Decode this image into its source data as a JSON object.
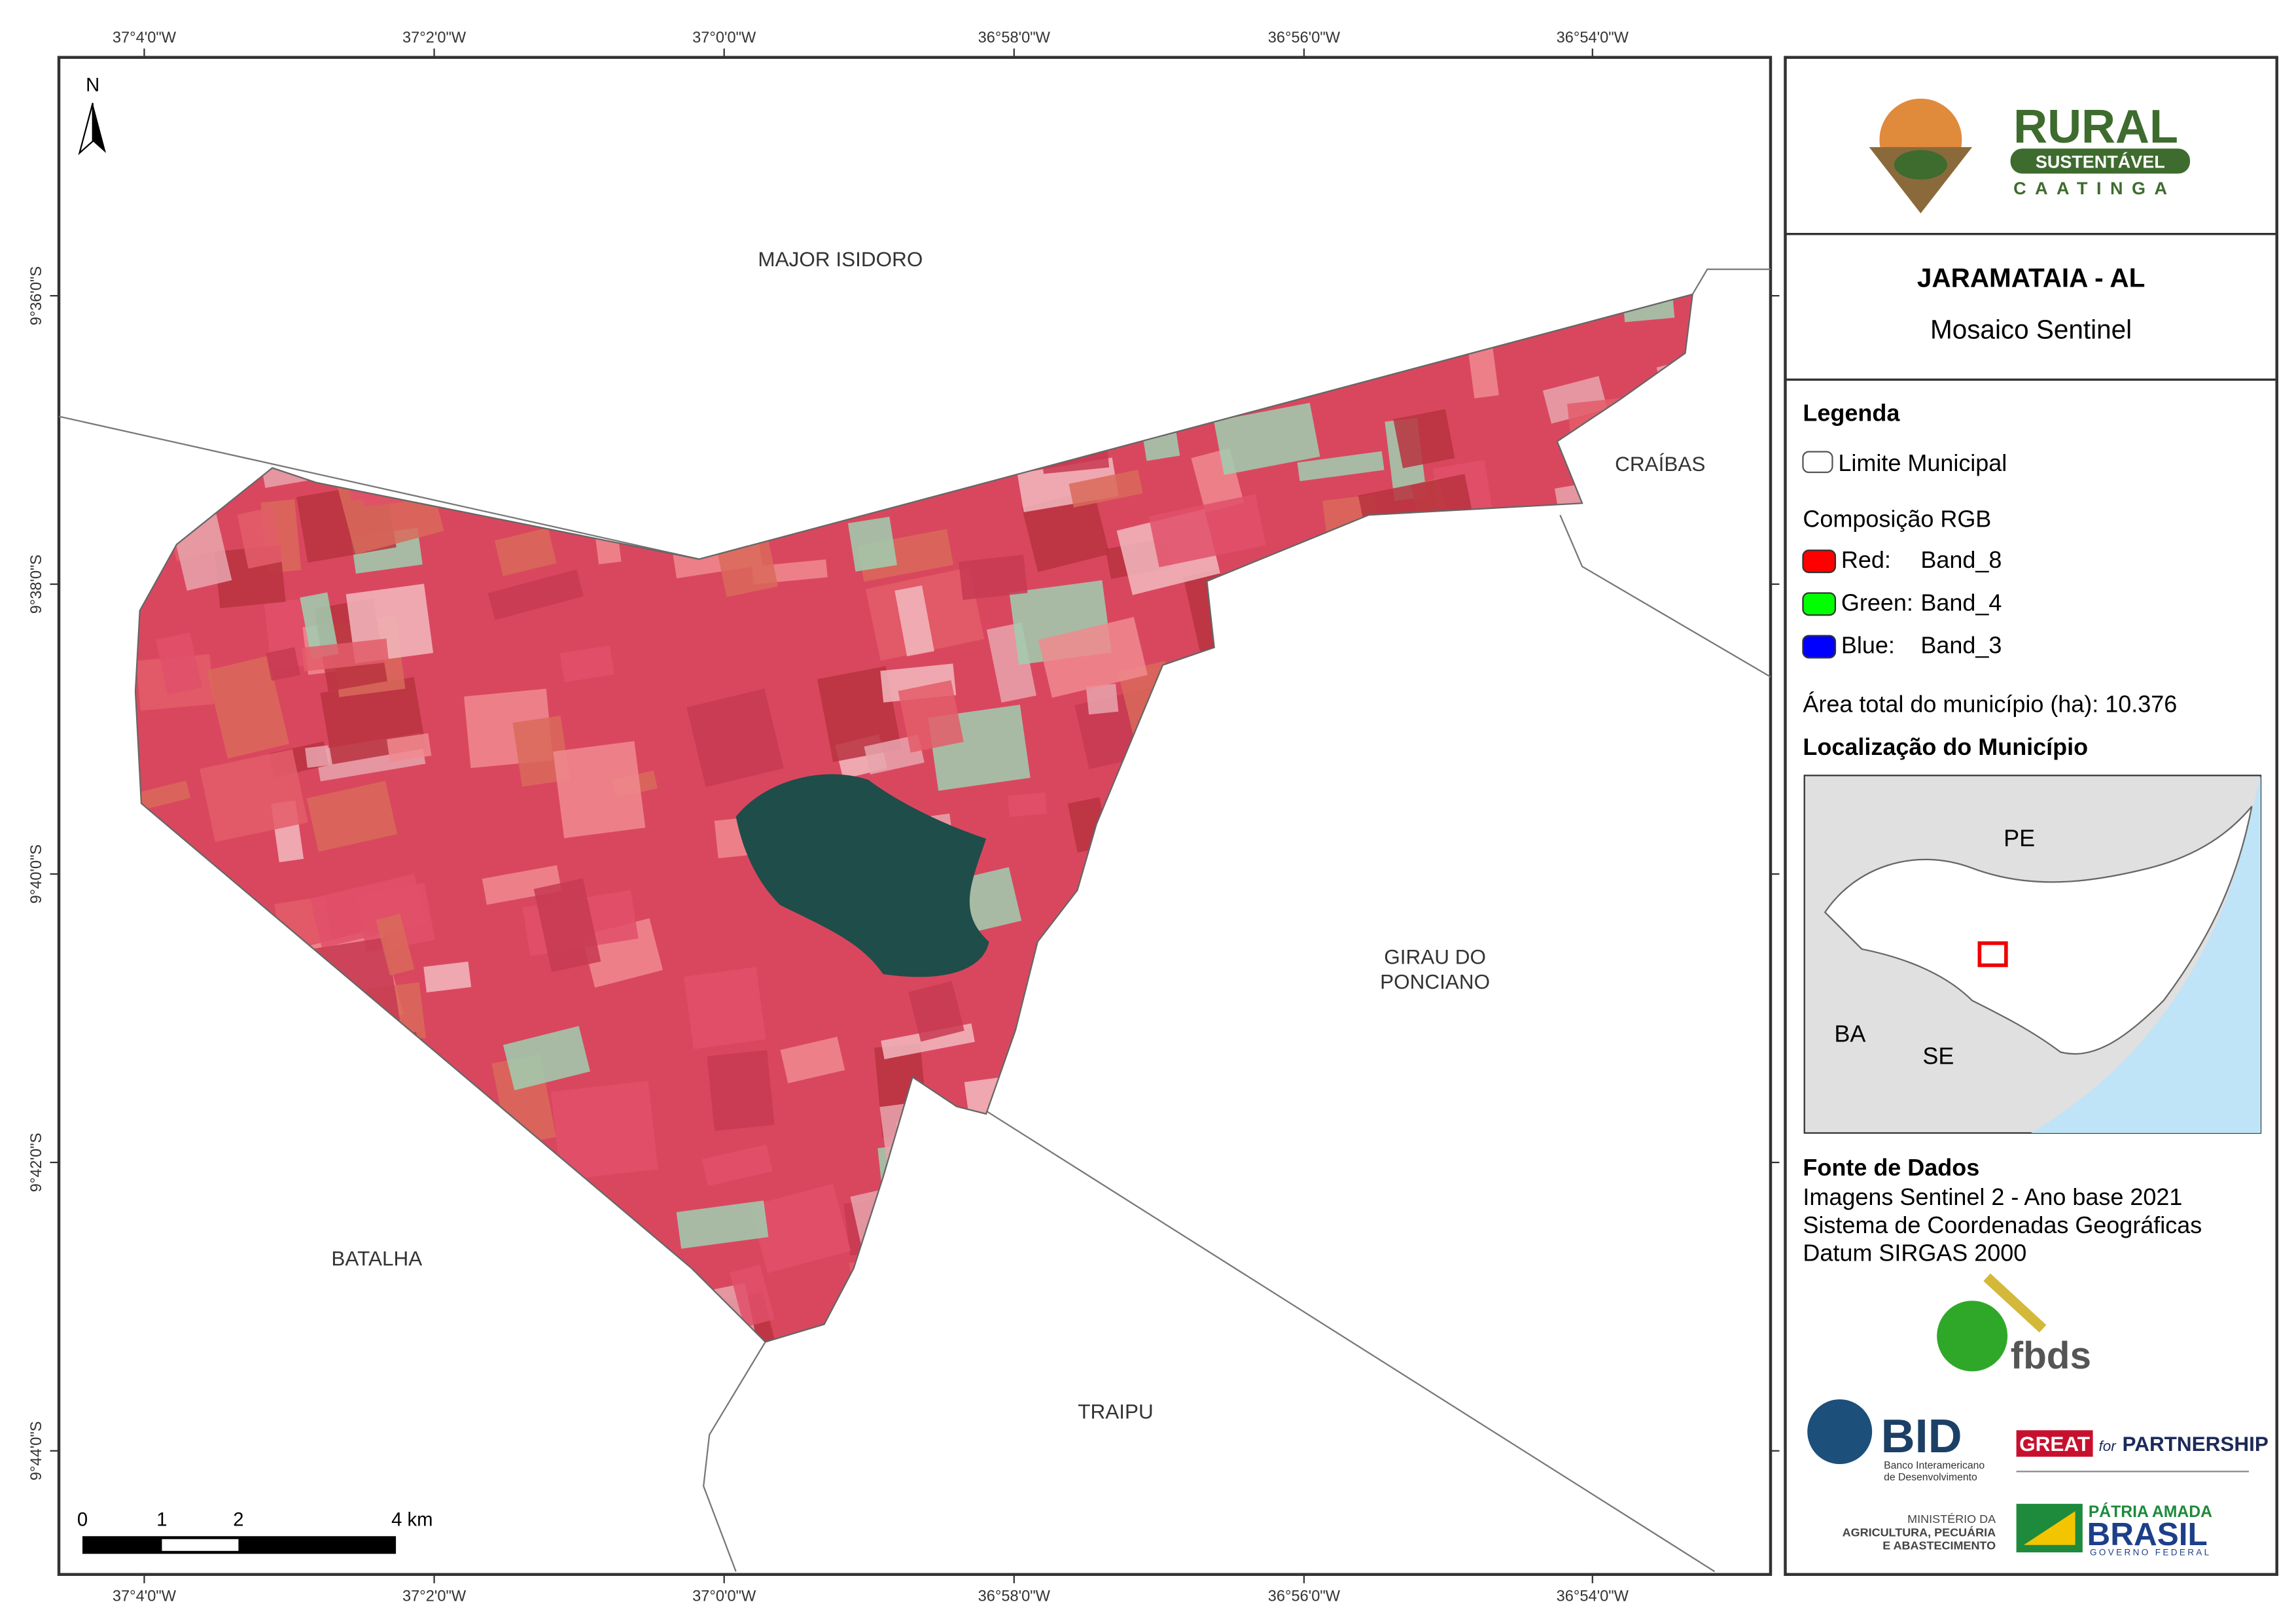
{
  "map": {
    "longitude_labels": [
      "37°4'0\"W",
      "37°2'0\"W",
      "37°0'0\"W",
      "36°58'0\"W",
      "36°56'0\"W",
      "36°54'0\"W"
    ],
    "latitude_labels": [
      "9°36'0\"S",
      "9°38'0\"S",
      "9°40'0\"S",
      "9°42'0\"S",
      "9°44'0\"S"
    ],
    "north_arrow": "N",
    "places": [
      "MAJOR ISIDORO",
      "CRAÍBAS",
      "GIRAU DO",
      "PONCIANO",
      "BATALHA",
      "TRAIPU"
    ],
    "scale_labels": [
      "0",
      "1",
      "2",
      "4 km"
    ]
  },
  "panel": {
    "logo": {
      "line1": "RURAL",
      "line2": "SUSTENTÁVEL",
      "line3": "CAATINGA"
    },
    "title": "JARAMATAIA - AL",
    "subtitle": "Mosaico Sentinel",
    "legend": {
      "heading": "Legenda",
      "boundary": "Limite Municipal",
      "rgb_heading": "Composição RGB",
      "bands": [
        {
          "channel": "Red:",
          "band": "Band_8",
          "color": "#ff0000"
        },
        {
          "channel": "Green:",
          "band": "Band_4",
          "color": "#00ff00"
        },
        {
          "channel": "Blue:",
          "band": "Band_3",
          "color": "#0000ff"
        }
      ],
      "area": "Área total do município (ha):  10.376"
    },
    "location": {
      "heading": "Localização do Município",
      "states": [
        "PE",
        "BA",
        "SE"
      ]
    },
    "sources": {
      "heading": "Fonte de Dados",
      "lines": [
        "Imagens Sentinel 2 - Ano base 2021",
        "Sistema de Coordenadas Geográficas",
        "Datum SIRGAS 2000"
      ]
    },
    "partners": {
      "fbds": "fbds",
      "bid": "BID",
      "bid_sub": [
        "Banco Interamericano",
        "de Desenvolvimento"
      ],
      "great": "GREAT",
      "great_for": "for",
      "great_partnership": "PARTNERSHIP",
      "ministry": [
        "MINISTÉRIO DA",
        "AGRICULTURA, PECUÁRIA",
        "E ABASTECIMENTO"
      ],
      "brasil": [
        "PÁTRIA AMADA",
        "BRASIL",
        "GOVERNO FEDERAL"
      ]
    }
  }
}
